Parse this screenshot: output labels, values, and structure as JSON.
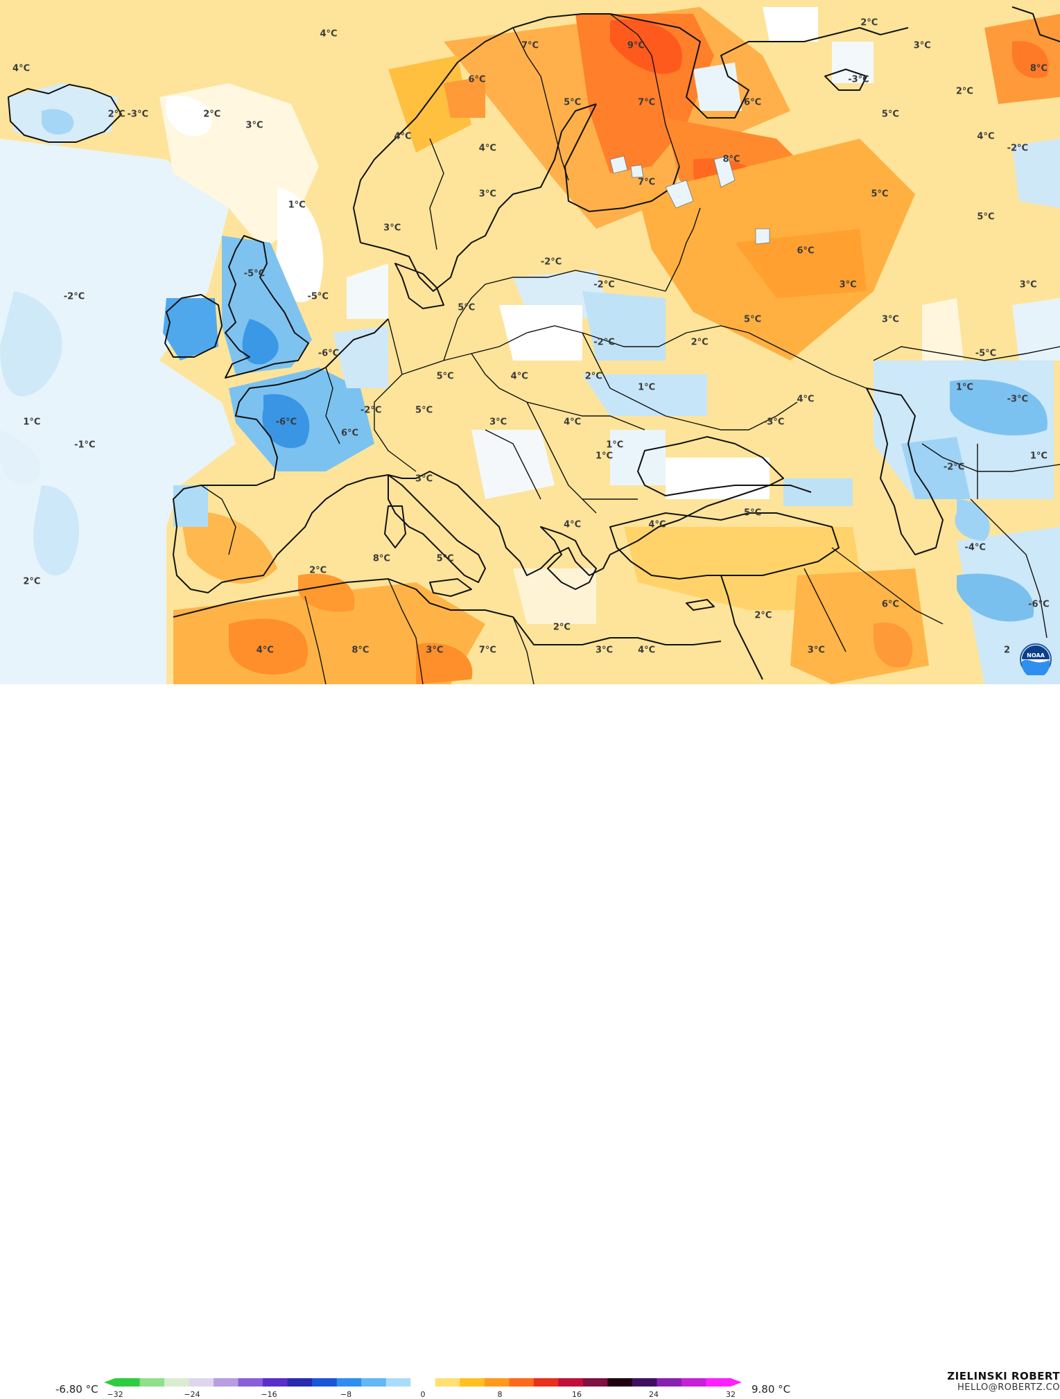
{
  "map": {
    "title": "",
    "labels": [
      {
        "text": "4°C",
        "lon": -30,
        "lat": 68
      },
      {
        "text": "4°C",
        "lon": -1,
        "lat": 71
      },
      {
        "text": "7°C",
        "lon": 18,
        "lat": 70
      },
      {
        "text": "9°C",
        "lon": 28,
        "lat": 70
      },
      {
        "text": "2°C",
        "lon": 50,
        "lat": 72
      },
      {
        "text": "3°C",
        "lon": 55,
        "lat": 70
      },
      {
        "text": "8°C",
        "lon": 66,
        "lat": 68
      },
      {
        "text": "6°C",
        "lon": 13,
        "lat": 67
      },
      {
        "text": "-3°C",
        "lon": 49,
        "lat": 67
      },
      {
        "text": "2°C",
        "lon": 59,
        "lat": 66
      },
      {
        "text": "-3°C",
        "lon": -19,
        "lat": 64
      },
      {
        "text": "2°C",
        "lon": -21,
        "lat": 64
      },
      {
        "text": "2°C",
        "lon": -12,
        "lat": 64
      },
      {
        "text": "5°C",
        "lon": 22,
        "lat": 65
      },
      {
        "text": "7°C",
        "lon": 29,
        "lat": 65
      },
      {
        "text": "6°C",
        "lon": 39,
        "lat": 65
      },
      {
        "text": "3°C",
        "lon": -8,
        "lat": 63
      },
      {
        "text": "5°C",
        "lon": 52,
        "lat": 64
      },
      {
        "text": "4°C",
        "lon": 6,
        "lat": 62
      },
      {
        "text": "4°C",
        "lon": 14,
        "lat": 61
      },
      {
        "text": "4°C",
        "lon": 61,
        "lat": 62
      },
      {
        "text": "-2°C",
        "lon": 64,
        "lat": 61
      },
      {
        "text": "8°C",
        "lon": 37,
        "lat": 60
      },
      {
        "text": "7°C",
        "lon": 29,
        "lat": 58
      },
      {
        "text": "5°C",
        "lon": 51,
        "lat": 57
      },
      {
        "text": "1°C",
        "lon": -4,
        "lat": 56
      },
      {
        "text": "3°C",
        "lon": 14,
        "lat": 57
      },
      {
        "text": "5°C",
        "lon": 61,
        "lat": 55
      },
      {
        "text": "3°C",
        "lon": 5,
        "lat": 54
      },
      {
        "text": "6°C",
        "lon": 44,
        "lat": 52
      },
      {
        "text": "-5°C",
        "lon": -8,
        "lat": 50
      },
      {
        "text": "-2°C",
        "lon": 20,
        "lat": 51
      },
      {
        "text": "3°C",
        "lon": 48,
        "lat": 49
      },
      {
        "text": "3°C",
        "lon": 65,
        "lat": 49
      },
      {
        "text": "-2°C",
        "lon": -25,
        "lat": 48
      },
      {
        "text": "-5°C",
        "lon": -2,
        "lat": 48
      },
      {
        "text": "-2°C",
        "lon": 25,
        "lat": 49
      },
      {
        "text": "5°C",
        "lon": 12,
        "lat": 47
      },
      {
        "text": "5°C",
        "lon": 39,
        "lat": 46
      },
      {
        "text": "3°C",
        "lon": 52,
        "lat": 46
      },
      {
        "text": "2°C",
        "lon": 34,
        "lat": 44
      },
      {
        "text": "-2°C",
        "lon": 25,
        "lat": 44
      },
      {
        "text": "-6°C",
        "lon": -1,
        "lat": 43
      },
      {
        "text": "-5°C",
        "lon": 61,
        "lat": 43
      },
      {
        "text": "5°C",
        "lon": 10,
        "lat": 41
      },
      {
        "text": "4°C",
        "lon": 17,
        "lat": 41
      },
      {
        "text": "2°C",
        "lon": 24,
        "lat": 41
      },
      {
        "text": "1°C",
        "lon": 29,
        "lat": 40
      },
      {
        "text": "1°C",
        "lon": 59,
        "lat": 40
      },
      {
        "text": "4°C",
        "lon": 44,
        "lat": 39
      },
      {
        "text": "-3°C",
        "lon": 64,
        "lat": 39
      },
      {
        "text": "-2°C",
        "lon": 3,
        "lat": 38
      },
      {
        "text": "5°C",
        "lon": 8,
        "lat": 38
      },
      {
        "text": "-6°C",
        "lon": -5,
        "lat": 37
      },
      {
        "text": "3°C",
        "lon": 15,
        "lat": 37
      },
      {
        "text": "4°C",
        "lon": 22,
        "lat": 37
      },
      {
        "text": "-3°C",
        "lon": 41,
        "lat": 37
      },
      {
        "text": "1°C",
        "lon": -29,
        "lat": 37
      },
      {
        "text": "6°C",
        "lon": 1,
        "lat": 36
      },
      {
        "text": "-1°C",
        "lon": -24,
        "lat": 35
      },
      {
        "text": "1°C",
        "lon": 26,
        "lat": 35
      },
      {
        "text": "1°C",
        "lon": 25,
        "lat": 34
      },
      {
        "text": "-2°C",
        "lon": 58,
        "lat": 33
      },
      {
        "text": "1°C",
        "lon": 66,
        "lat": 34
      },
      {
        "text": "3°C",
        "lon": 8,
        "lat": 32
      },
      {
        "text": "5°C",
        "lon": 39,
        "lat": 29
      },
      {
        "text": "4°C",
        "lon": 22,
        "lat": 28
      },
      {
        "text": "4°C",
        "lon": 30,
        "lat": 28
      },
      {
        "text": "-4°C",
        "lon": 60,
        "lat": 26
      },
      {
        "text": "2°C",
        "lon": -29,
        "lat": 23
      },
      {
        "text": "2°C",
        "lon": -2,
        "lat": 24
      },
      {
        "text": "8°C",
        "lon": 4,
        "lat": 25
      },
      {
        "text": "5°C",
        "lon": 10,
        "lat": 25
      },
      {
        "text": "-6°C",
        "lon": 66,
        "lat": 21
      },
      {
        "text": "6°C",
        "lon": 52,
        "lat": 21
      },
      {
        "text": "2°C",
        "lon": 40,
        "lat": 20
      },
      {
        "text": "2°C",
        "lon": 21,
        "lat": 19
      },
      {
        "text": "4°C",
        "lon": -7,
        "lat": 17
      },
      {
        "text": "8°C",
        "lon": 2,
        "lat": 17
      },
      {
        "text": "3°C",
        "lon": 9,
        "lat": 17
      },
      {
        "text": "7°C",
        "lon": 14,
        "lat": 17
      },
      {
        "text": "3°C",
        "lon": 25,
        "lat": 17
      },
      {
        "text": "4°C",
        "lon": 29,
        "lat": 17
      },
      {
        "text": "3°C",
        "lon": 45,
        "lat": 17
      },
      {
        "text": "2",
        "lon": 63,
        "lat": 17
      }
    ]
  },
  "legend": {
    "min_label": "-6.80 °C",
    "max_label": "9.80 °C",
    "ticks": [
      -32,
      -24,
      -16,
      -8,
      0,
      8,
      16,
      24,
      32
    ],
    "range": [
      -32,
      32
    ],
    "colors": [
      "#2ecc40",
      "#8ee08a",
      "#d9ecd2",
      "#ddd6ec",
      "#b89ee0",
      "#8a5fd8",
      "#5a2ec8",
      "#2a2ab0",
      "#1a56d8",
      "#2f8ff0",
      "#62b8f5",
      "#a9dcf8",
      "#ffffff",
      "#ffe070",
      "#ffc020",
      "#ff9a1a",
      "#ff6a1a",
      "#e8301a",
      "#c0103a",
      "#801040",
      "#200010",
      "#401060",
      "#8a20b0",
      "#c820d8",
      "#ff20ff"
    ]
  },
  "credit": {
    "name": "ZIELINSKI ROBERT",
    "email": "HELLO@ROBERTZ.CO"
  },
  "logo": {
    "icon": "noaa-logo-icon",
    "text": "NOAA"
  }
}
